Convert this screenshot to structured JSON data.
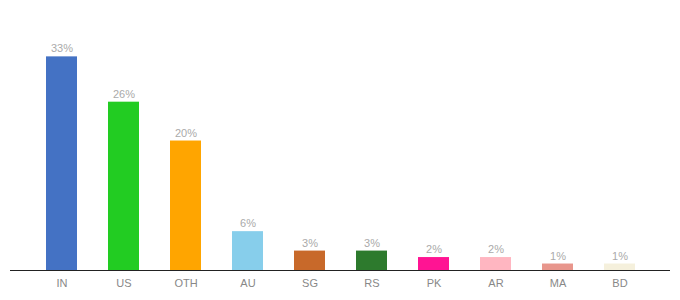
{
  "chart_data": {
    "type": "bar",
    "categories": [
      "IN",
      "US",
      "OTH",
      "AU",
      "SG",
      "RS",
      "PK",
      "AR",
      "MA",
      "BD"
    ],
    "values": [
      33,
      26,
      20,
      6,
      3,
      3,
      2,
      2,
      1,
      1
    ],
    "value_labels": [
      "33%",
      "26%",
      "20%",
      "6%",
      "3%",
      "3%",
      "2%",
      "2%",
      "1%",
      "1%"
    ],
    "colors": [
      "#4472c4",
      "#22cc22",
      "#ffa500",
      "#87ceeb",
      "#c8692a",
      "#2d7a2d",
      "#ff1493",
      "#ffb6c1",
      "#e8968c",
      "#f5f0dc"
    ],
    "ylim": [
      0,
      38
    ],
    "data_labels": true,
    "tick_labels": "x",
    "grid": false
  }
}
